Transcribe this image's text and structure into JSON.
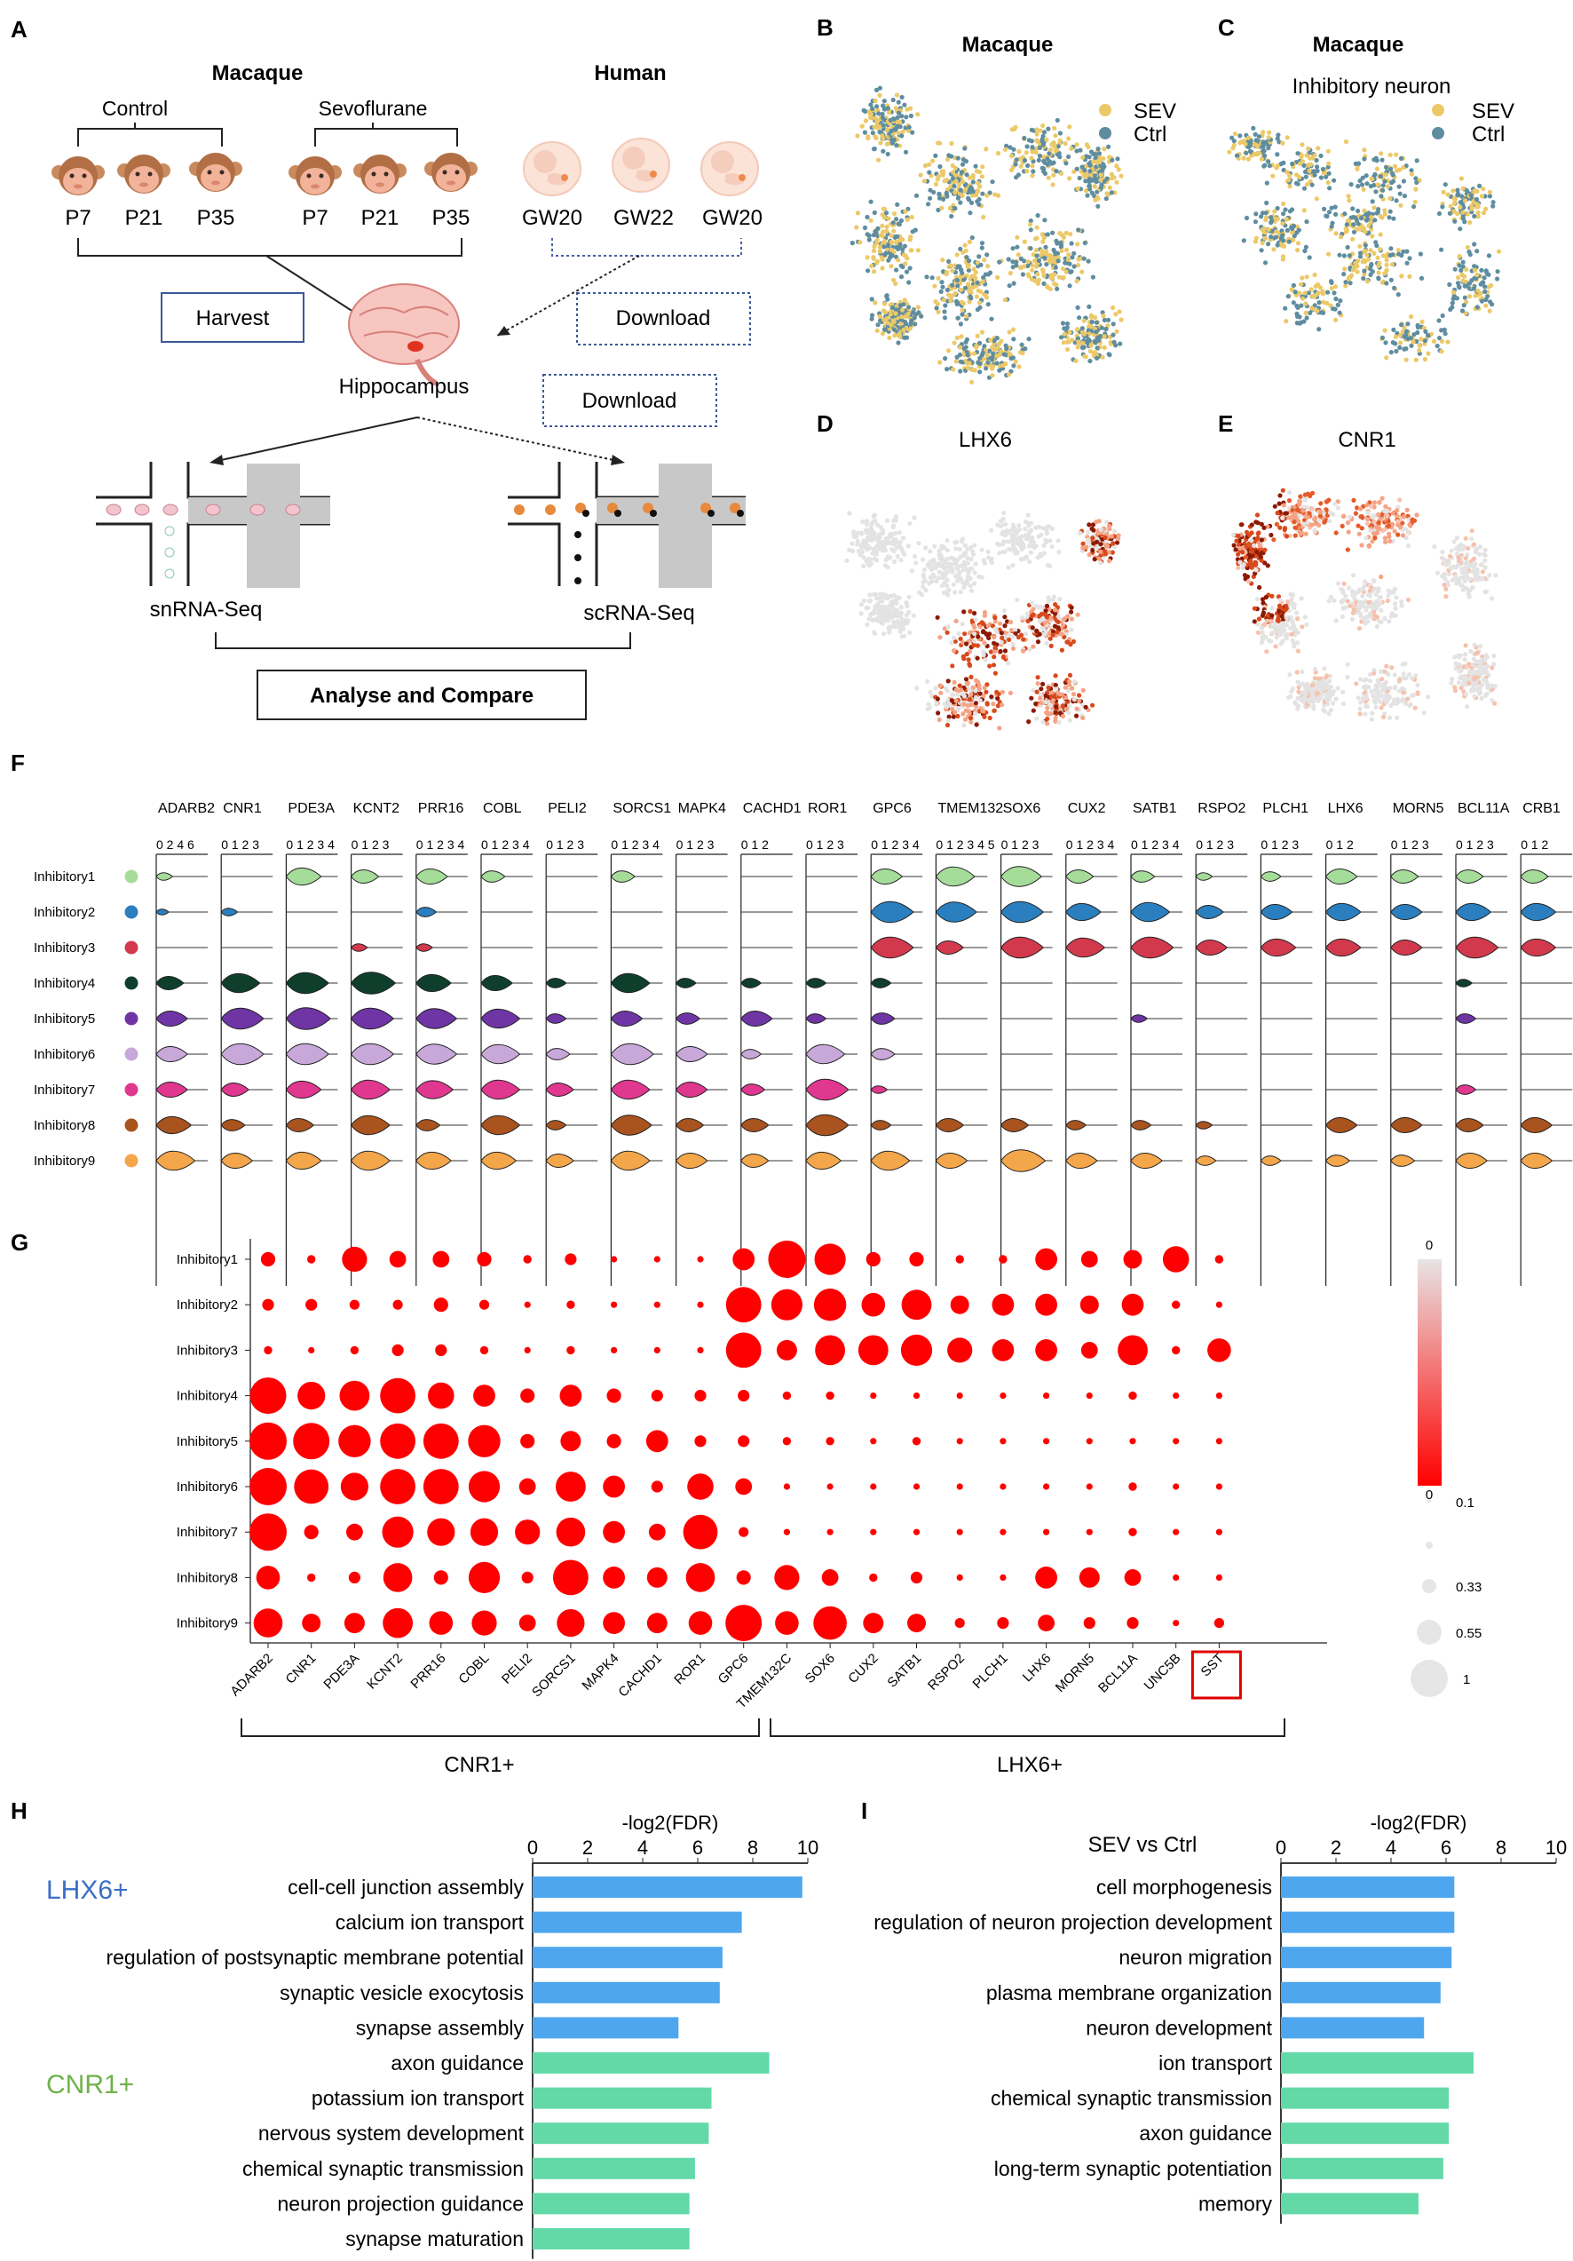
{
  "panels": {
    "a": {
      "letter": "A",
      "macaque_label": "Macaque",
      "human_label": "Human",
      "control_label": "Control",
      "sevo_label": "Sevoflurane",
      "control_ages": [
        "P7",
        "P21",
        "P35"
      ],
      "sevo_ages": [
        "P7",
        "P21",
        "P35"
      ],
      "human_ages": [
        "GW20",
        "GW22",
        "GW20"
      ],
      "harvest": "Harvest",
      "download1": "Download",
      "download2": "Download",
      "hippocampus": "Hippocampus",
      "snrna": "snRNA-Seq",
      "scrna": "scRNA-Seq",
      "analyse": "Analyse and Compare"
    },
    "b": {
      "letter": "B",
      "title": "Macaque",
      "legend": [
        "SEV",
        "Ctrl"
      ]
    },
    "c": {
      "letter": "C",
      "title": "Macaque",
      "subtitle": "Inhibitory neuron",
      "legend": [
        "SEV",
        "Ctrl"
      ]
    },
    "d": {
      "letter": "D",
      "title": "LHX6"
    },
    "e": {
      "letter": "E",
      "title": "CNR1"
    },
    "f": {
      "letter": "F"
    },
    "g": {
      "letter": "G",
      "colorbar_top": "0",
      "colorbar_bottom": "0",
      "size_legend": [
        "0.1",
        "0.33",
        "0.55",
        "1"
      ],
      "group_left": "CNR1+",
      "group_right": "LHX6+"
    },
    "h": {
      "letter": "H",
      "lhx6_label": "LHX6+",
      "cnr1_label": "CNR1+"
    },
    "i": {
      "letter": "I",
      "title": "SEV vs Ctrl"
    }
  },
  "colors": {
    "sev": "#ecc968",
    "ctrl": "#5f8da0",
    "dot": "#ff0000",
    "lhx6_bar": "#4ea6ee",
    "cnr1_bar": "#63d9a8",
    "violin": [
      "#a6dc9a",
      "#2b7fbf",
      "#d3394d",
      "#0f3f2c",
      "#6f35a5",
      "#c8a8d9",
      "#e0378f",
      "#a9531e",
      "#f4a64a"
    ]
  },
  "chart_data": [
    {
      "id": "F",
      "type": "violin",
      "title": "",
      "genes": [
        "ADARB2",
        "CNR1",
        "PDE3A",
        "KCNT2",
        "PRR16",
        "COBL",
        "PELI2",
        "SORCS1",
        "MAPK4",
        "CACHD1",
        "ROR1",
        "GPC6",
        "TMEM132",
        "SOX6",
        "CUX2",
        "SATB1",
        "RSPO2",
        "PLCH1",
        "LHX6",
        "MORN5",
        "BCL11A",
        "CRB1"
      ],
      "tick_labels": [
        "0 2 4 6",
        "0 1 2 3",
        "0 1 2 3 4",
        "0 1 2 3",
        "0 1 2 3 4",
        "0 1 2 3 4",
        "0 1 2 3",
        "0 1 2 3 4",
        "0 1 2 3",
        "0 1 2",
        "0 1 2 3",
        "0 1 2 3 4",
        "0 1 2 3 4 5",
        "0 1 2 3",
        "0 1 2 3 4",
        "0 1 2 3 4",
        "0 1 2 3",
        "0 1 2 3",
        "0 1 2",
        "0 1 2 3",
        "0 1 2 3",
        "0 1 2"
      ],
      "rows": [
        "Inhibitory1",
        "Inhibitory2",
        "Inhibitory3",
        "Inhibitory4",
        "Inhibitory5",
        "Inhibitory6",
        "Inhibitory7",
        "Inhibitory8",
        "Inhibitory9"
      ],
      "expression": [
        [
          0.2,
          0,
          0.7,
          0.5,
          0.6,
          0.4,
          0,
          0.4,
          0,
          0,
          0,
          0.6,
          0.8,
          0.85,
          0.5,
          0.4,
          0.2,
          0.3,
          0.6,
          0.5,
          0.5,
          0.5
        ],
        [
          0.1,
          0.2,
          0,
          0,
          0.3,
          0,
          0,
          0,
          0,
          0,
          0,
          0.9,
          0.85,
          0.9,
          0.7,
          0.8,
          0.5,
          0.6,
          0.7,
          0.6,
          0.7,
          0.7
        ],
        [
          0,
          0,
          0,
          0.2,
          0.2,
          0,
          0,
          0,
          0,
          0,
          0,
          0.9,
          0.5,
          0.9,
          0.8,
          0.9,
          0.6,
          0.7,
          0.7,
          0.6,
          0.9,
          0.7
        ],
        [
          0.5,
          0.8,
          0.9,
          0.95,
          0.7,
          0.6,
          0.3,
          0.8,
          0.3,
          0.3,
          0.3,
          0.3,
          0,
          0,
          0,
          0,
          0,
          0,
          0,
          0,
          0.2,
          0
        ],
        [
          0.6,
          0.9,
          0.95,
          0.9,
          0.85,
          0.8,
          0.3,
          0.6,
          0.4,
          0.6,
          0.3,
          0.4,
          0,
          0,
          0,
          0.2,
          0,
          0,
          0,
          0,
          0.3,
          0
        ],
        [
          0.6,
          0.9,
          0.9,
          0.9,
          0.85,
          0.8,
          0.4,
          0.9,
          0.6,
          0.3,
          0.8,
          0.4,
          0,
          0,
          0,
          0,
          0,
          0,
          0,
          0,
          0,
          0
        ],
        [
          0.6,
          0.5,
          0.7,
          0.8,
          0.75,
          0.8,
          0.5,
          0.8,
          0.6,
          0.4,
          0.9,
          0.2,
          0,
          0,
          0,
          0,
          0,
          0,
          0,
          0,
          0.3,
          0
        ],
        [
          0.7,
          0.4,
          0.5,
          0.8,
          0.4,
          0.8,
          0.3,
          0.85,
          0.5,
          0.5,
          0.9,
          0.3,
          0.5,
          0.5,
          0.3,
          0.3,
          0.2,
          0,
          0.6,
          0.6,
          0.5,
          0.6
        ],
        [
          0.8,
          0.6,
          0.7,
          0.8,
          0.7,
          0.7,
          0.5,
          0.8,
          0.6,
          0.5,
          0.7,
          0.8,
          0.6,
          0.95,
          0.6,
          0.6,
          0.3,
          0.3,
          0.4,
          0.4,
          0.6,
          0.6
        ]
      ]
    },
    {
      "id": "G",
      "type": "dot",
      "genes": [
        "ADARB2",
        "CNR1",
        "PDE3A",
        "KCNT2",
        "PRR16",
        "COBL",
        "PELI2",
        "SORCS1",
        "MAPK4",
        "CACHD1",
        "ROR1",
        "GPC6",
        "TMEM132C",
        "SOX6",
        "CUX2",
        "SATB1",
        "RSPO2",
        "PLCH1",
        "LHX6",
        "MORN5",
        "BCL11A",
        "UNC5B",
        "SST"
      ],
      "highlighted_gene": "SST",
      "rows": [
        "Inhibitory1",
        "Inhibitory2",
        "Inhibitory3",
        "Inhibitory4",
        "Inhibitory5",
        "Inhibitory6",
        "Inhibitory7",
        "Inhibitory8",
        "Inhibitory9"
      ],
      "fraction": [
        [
          0.15,
          0.05,
          0.45,
          0.2,
          0.2,
          0.15,
          0.05,
          0.1,
          0.03,
          0.03,
          0.03,
          0.35,
          1.0,
          0.7,
          0.15,
          0.15,
          0.05,
          0.05,
          0.35,
          0.2,
          0.25,
          0.5,
          0.05
        ],
        [
          0.1,
          0.1,
          0.07,
          0.07,
          0.15,
          0.07,
          0.03,
          0.05,
          0.03,
          0.03,
          0.03,
          0.9,
          0.7,
          0.75,
          0.4,
          0.65,
          0.25,
          0.35,
          0.35,
          0.25,
          0.35,
          0.05,
          0.03
        ],
        [
          0.05,
          0.03,
          0.05,
          0.1,
          0.1,
          0.05,
          0.03,
          0.05,
          0.03,
          0.03,
          0.03,
          0.9,
          0.3,
          0.65,
          0.65,
          0.7,
          0.45,
          0.35,
          0.35,
          0.2,
          0.65,
          0.05,
          0.4
        ],
        [
          0.95,
          0.55,
          0.65,
          0.9,
          0.5,
          0.35,
          0.15,
          0.35,
          0.15,
          0.1,
          0.1,
          0.1,
          0.05,
          0.05,
          0.03,
          0.03,
          0.03,
          0.03,
          0.03,
          0.03,
          0.05,
          0.03,
          0.03
        ],
        [
          1.0,
          0.95,
          0.75,
          0.9,
          0.9,
          0.75,
          0.15,
          0.3,
          0.15,
          0.35,
          0.1,
          0.1,
          0.05,
          0.05,
          0.03,
          0.05,
          0.03,
          0.03,
          0.03,
          0.03,
          0.03,
          0.03,
          0.03
        ],
        [
          1.0,
          0.85,
          0.55,
          0.9,
          0.9,
          0.7,
          0.2,
          0.65,
          0.35,
          0.1,
          0.5,
          0.2,
          0.03,
          0.03,
          0.03,
          0.03,
          0.03,
          0.03,
          0.03,
          0.03,
          0.05,
          0.03,
          0.03
        ],
        [
          1.0,
          0.15,
          0.2,
          0.7,
          0.55,
          0.55,
          0.45,
          0.6,
          0.35,
          0.2,
          0.85,
          0.07,
          0.03,
          0.03,
          0.03,
          0.03,
          0.03,
          0.03,
          0.03,
          0.03,
          0.05,
          0.03,
          0.03
        ],
        [
          0.4,
          0.05,
          0.1,
          0.6,
          0.15,
          0.7,
          0.1,
          0.9,
          0.35,
          0.3,
          0.6,
          0.15,
          0.45,
          0.2,
          0.05,
          0.1,
          0.03,
          0.03,
          0.35,
          0.3,
          0.2,
          0.03,
          0.03
        ],
        [
          0.6,
          0.25,
          0.3,
          0.65,
          0.4,
          0.45,
          0.2,
          0.55,
          0.35,
          0.3,
          0.4,
          0.95,
          0.4,
          0.8,
          0.3,
          0.25,
          0.07,
          0.1,
          0.2,
          0.1,
          0.1,
          0.03,
          0.07
        ]
      ],
      "colorbar": "white-to-red",
      "size_legend": [
        0.1,
        0.33,
        0.55,
        1.0
      ],
      "groups": [
        {
          "label": "CNR1+",
          "genes": "ADARB2-ROR1"
        },
        {
          "label": "LHX6+",
          "genes": "GPC6-UNC5B"
        }
      ]
    },
    {
      "id": "H",
      "type": "bar",
      "orientation": "horizontal",
      "xlabel": "-log2(FDR)",
      "xlim": [
        0,
        10
      ],
      "ticks": [
        0,
        2,
        4,
        6,
        8,
        10
      ],
      "categories": [
        "cell-cell junction assembly",
        "calcium ion transport",
        "regulation of postsynaptic membrane potential",
        "synaptic vesicle exocytosis",
        "synapse assembly",
        "axon guidance",
        "potassium ion transport",
        "nervous system development",
        "chemical synaptic transmission",
        "neuron projection guidance",
        "synapse maturation"
      ],
      "values": [
        9.8,
        7.6,
        6.9,
        6.8,
        5.3,
        8.6,
        6.5,
        6.4,
        5.9,
        5.7,
        5.7
      ],
      "groups": [
        "LHX6+",
        "LHX6+",
        "LHX6+",
        "LHX6+",
        "LHX6+",
        "CNR1+",
        "CNR1+",
        "CNR1+",
        "CNR1+",
        "CNR1+",
        "CNR1+"
      ]
    },
    {
      "id": "I",
      "type": "bar",
      "orientation": "horizontal",
      "title": "SEV vs Ctrl",
      "xlabel": "-log2(FDR)",
      "xlim": [
        0,
        10
      ],
      "ticks": [
        0,
        2,
        4,
        6,
        8,
        10
      ],
      "categories": [
        "cell morphogenesis",
        "regulation of neuron projection development",
        "neuron migration",
        "plasma membrane organization",
        "neuron development",
        "ion transport",
        "chemical synaptic transmission",
        "axon guidance",
        "long-term synaptic potentiation",
        "memory"
      ],
      "values": [
        6.3,
        6.3,
        6.2,
        5.8,
        5.2,
        7.0,
        6.1,
        6.1,
        5.9,
        5.0
      ],
      "groups": [
        "top",
        "top",
        "top",
        "top",
        "top",
        "bottom",
        "bottom",
        "bottom",
        "bottom",
        "bottom"
      ]
    }
  ]
}
